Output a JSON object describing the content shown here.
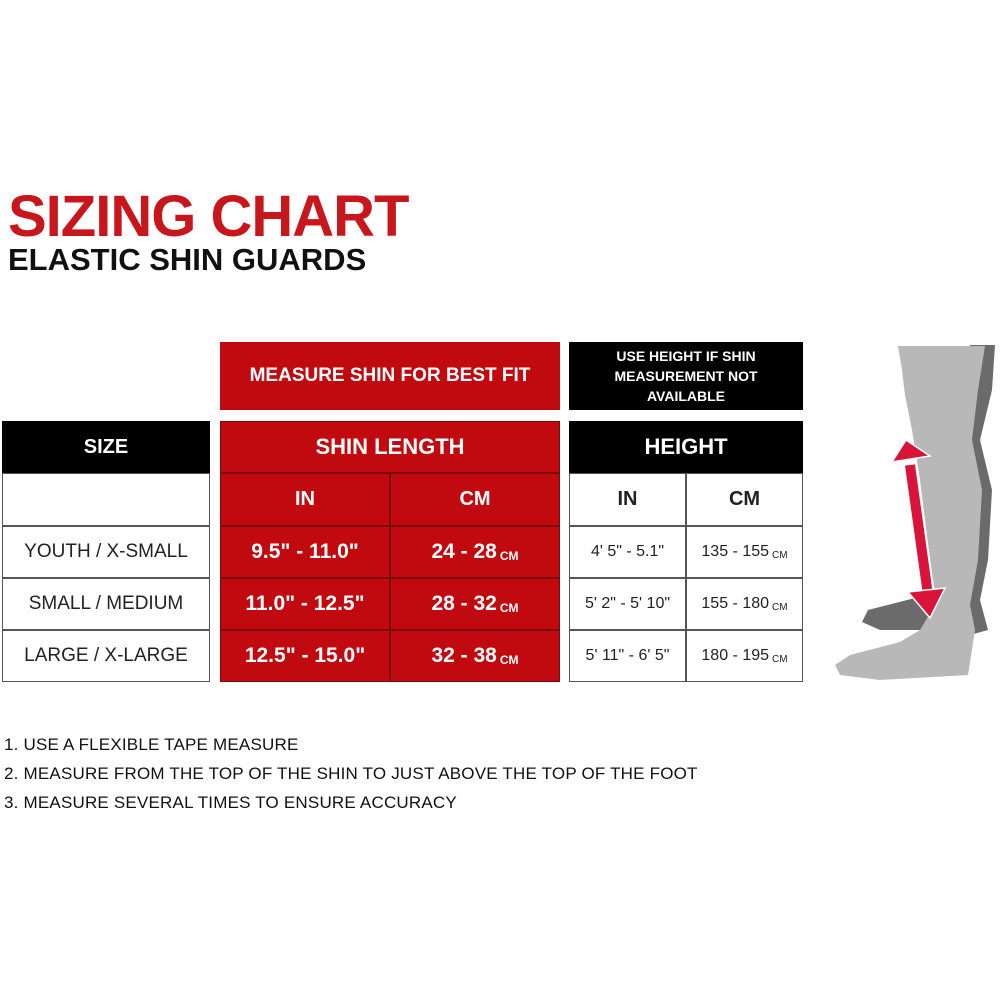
{
  "header": {
    "title": "SIZING CHART",
    "subtitle": "ELASTIC SHIN GUARDS"
  },
  "table": {
    "shin_note": "MEASURE SHIN FOR BEST FIT",
    "height_note": "USE HEIGHT IF SHIN MEASUREMENT NOT AVAILABLE",
    "size_header": "SIZE",
    "shin_header": "SHIN LENGTH",
    "height_header": "HEIGHT",
    "shin_in": "IN",
    "shin_cm": "CM",
    "height_in": "IN",
    "height_cm": "CM",
    "cm_unit": "CM",
    "rows": [
      {
        "size": "YOUTH / X-SMALL",
        "shin_in": "9.5\" - 11.0\"",
        "shin_cm": "24 - 28",
        "height_in": "4' 5\" - 5.1\"",
        "height_cm": "135 - 155"
      },
      {
        "size": "SMALL / MEDIUM",
        "shin_in": "11.0\" - 12.5\"",
        "shin_cm": "28 - 32",
        "height_in": "5' 2\" - 5' 10\"",
        "height_cm": "155 - 180"
      },
      {
        "size": "LARGE / X-LARGE",
        "shin_in": "12.5\" - 15.0\"",
        "shin_cm": "32 - 38",
        "height_in": "5' 11\" - 6' 5\"",
        "height_cm": "180 - 195"
      }
    ]
  },
  "instructions": [
    "1.  USE A FLEXIBLE TAPE MEASURE",
    "2. MEASURE FROM THE TOP OF THE SHIN TO JUST ABOVE THE TOP OF THE FOOT",
    "3. MEASURE SEVERAL TIMES TO ENSURE ACCURACY"
  ],
  "colors": {
    "accent": "#c10a0f",
    "dark": "#000000",
    "arrow": "#d9143a"
  }
}
